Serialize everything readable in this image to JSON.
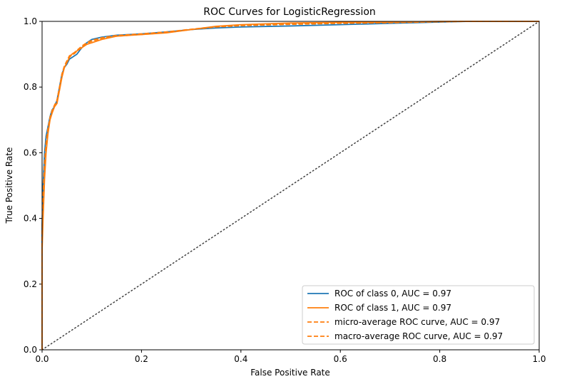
{
  "chart_data": {
    "type": "line",
    "title": "ROC Curves for LogisticRegression",
    "xlabel": "False Positive Rate",
    "ylabel": "True Positive Rate",
    "xlim": [
      0.0,
      1.0
    ],
    "ylim": [
      0.0,
      1.0
    ],
    "xticks": [
      "0.0",
      "0.2",
      "0.4",
      "0.6",
      "0.8",
      "1.0"
    ],
    "yticks": [
      "0.0",
      "0.2",
      "0.4",
      "0.6",
      "0.8",
      "1.0"
    ],
    "grid": false,
    "legend_position": "lower-right",
    "series": [
      {
        "name": "ROC of class 0, AUC = 0.97",
        "color": "#1f77b4",
        "style": "solid",
        "x": [
          0.0,
          0.0,
          0.002,
          0.005,
          0.008,
          0.012,
          0.016,
          0.02,
          0.025,
          0.03,
          0.035,
          0.04,
          0.045,
          0.05,
          0.055,
          0.06,
          0.065,
          0.07,
          0.075,
          0.08,
          0.09,
          0.1,
          0.12,
          0.15,
          0.2,
          0.25,
          0.3,
          0.35,
          0.4,
          0.5,
          0.6,
          0.7,
          0.8,
          0.86,
          0.9,
          1.0
        ],
        "y": [
          0.0,
          0.38,
          0.5,
          0.6,
          0.65,
          0.68,
          0.71,
          0.73,
          0.74,
          0.76,
          0.8,
          0.84,
          0.86,
          0.87,
          0.885,
          0.89,
          0.895,
          0.9,
          0.91,
          0.92,
          0.935,
          0.945,
          0.952,
          0.958,
          0.962,
          0.968,
          0.975,
          0.98,
          0.983,
          0.986,
          0.99,
          0.994,
          0.998,
          1.0,
          1.0,
          1.0
        ]
      },
      {
        "name": "ROC of class 1, AUC = 0.97",
        "color": "#ff7f0e",
        "style": "solid",
        "x": [
          0.0,
          0.0,
          0.002,
          0.005,
          0.008,
          0.012,
          0.016,
          0.02,
          0.025,
          0.03,
          0.035,
          0.04,
          0.045,
          0.05,
          0.055,
          0.06,
          0.065,
          0.07,
          0.075,
          0.08,
          0.09,
          0.1,
          0.12,
          0.15,
          0.2,
          0.25,
          0.3,
          0.35,
          0.4,
          0.5,
          0.6,
          0.7,
          0.8,
          0.86,
          0.9,
          1.0
        ],
        "y": [
          0.0,
          0.3,
          0.4,
          0.52,
          0.6,
          0.66,
          0.7,
          0.72,
          0.74,
          0.75,
          0.79,
          0.83,
          0.86,
          0.875,
          0.89,
          0.9,
          0.905,
          0.91,
          0.915,
          0.92,
          0.93,
          0.935,
          0.945,
          0.955,
          0.96,
          0.965,
          0.975,
          0.985,
          0.99,
          0.995,
          0.997,
          0.998,
          1.0,
          1.0,
          1.0,
          1.0
        ]
      },
      {
        "name": "micro-average ROC curve, AUC = 0.97",
        "color": "#ff7f0e",
        "style": "dashed",
        "x": [
          0.0,
          0.0,
          0.002,
          0.005,
          0.008,
          0.012,
          0.016,
          0.02,
          0.025,
          0.03,
          0.035,
          0.04,
          0.045,
          0.05,
          0.055,
          0.06,
          0.065,
          0.07,
          0.075,
          0.08,
          0.09,
          0.1,
          0.12,
          0.15,
          0.2,
          0.25,
          0.3,
          0.35,
          0.4,
          0.5,
          0.6,
          0.7,
          0.8,
          0.86,
          0.9,
          1.0
        ],
        "y": [
          0.0,
          0.34,
          0.45,
          0.56,
          0.62,
          0.67,
          0.705,
          0.725,
          0.745,
          0.76,
          0.8,
          0.84,
          0.865,
          0.88,
          0.895,
          0.9,
          0.905,
          0.912,
          0.918,
          0.925,
          0.935,
          0.942,
          0.95,
          0.957,
          0.962,
          0.968,
          0.976,
          0.984,
          0.988,
          0.992,
          0.995,
          0.997,
          0.999,
          1.0,
          1.0,
          1.0
        ]
      },
      {
        "name": "macro-average ROC curve, AUC = 0.97",
        "color": "#ff7f0e",
        "style": "dashed",
        "x": [
          0.0,
          0.0,
          0.002,
          0.005,
          0.008,
          0.012,
          0.016,
          0.02,
          0.025,
          0.03,
          0.035,
          0.04,
          0.045,
          0.05,
          0.055,
          0.06,
          0.065,
          0.07,
          0.075,
          0.08,
          0.09,
          0.1,
          0.12,
          0.15,
          0.2,
          0.25,
          0.3,
          0.35,
          0.4,
          0.5,
          0.6,
          0.7,
          0.8,
          0.86,
          0.9,
          1.0
        ],
        "y": [
          0.0,
          0.36,
          0.47,
          0.57,
          0.63,
          0.675,
          0.708,
          0.728,
          0.745,
          0.758,
          0.798,
          0.838,
          0.862,
          0.878,
          0.892,
          0.897,
          0.902,
          0.909,
          0.915,
          0.922,
          0.932,
          0.94,
          0.948,
          0.955,
          0.96,
          0.966,
          0.975,
          0.983,
          0.987,
          0.991,
          0.994,
          0.996,
          0.999,
          1.0,
          1.0,
          1.0
        ]
      }
    ],
    "reference_line": {
      "x": [
        0.0,
        1.0
      ],
      "y": [
        0.0,
        1.0
      ],
      "color": "#404040",
      "style": "dotted"
    }
  }
}
